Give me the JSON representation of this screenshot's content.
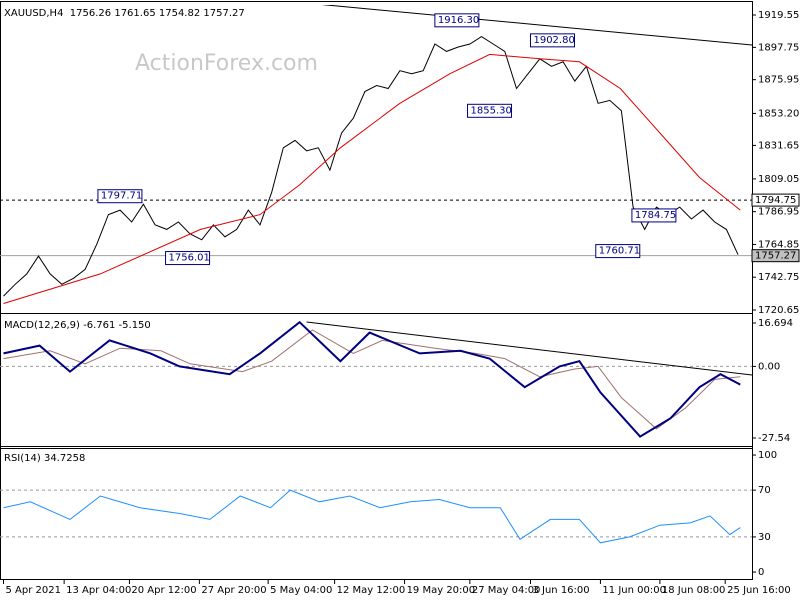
{
  "chart_data": [
    {
      "type": "line",
      "title": "XAUUSD,H4  1756.26 1761.65 1754.82 1757.27",
      "watermark": "ActionForex.com",
      "xlim": [
        -0.3,
        64.2
      ],
      "ylim": [
        1719.3,
        1926.3
      ],
      "yticks": [
        1919.55,
        1897.75,
        1875.95,
        {
          "value": 1853.2,
          "label": "1853.20"
        },
        1831.65,
        1809.05,
        1786.95,
        1764.85,
        1742.75,
        1720.65
      ],
      "hlines": [
        {
          "value": 1794.75,
          "label": "1794.75",
          "style": "dashed",
          "color": "#000000"
        },
        {
          "value": 1757.27,
          "label": "1757.27",
          "style": "solid",
          "color": "#a0a0a0"
        }
      ],
      "annotations": [
        {
          "label": "1916.30",
          "value": 1916.3,
          "x": 37.0
        },
        {
          "label": "1902.80",
          "value": 1902.8,
          "x": 45.2
        },
        {
          "label": "1855.30",
          "value": 1855.3,
          "x": 39.8
        },
        {
          "label": "1797.71",
          "value": 1797.71,
          "x": 8.1
        },
        {
          "label": "1756.01",
          "value": 1756.01,
          "x": 13.9
        },
        {
          "label": "1784.75",
          "value": 1784.75,
          "x": 53.9
        },
        {
          "label": "1760.71",
          "value": 1760.71,
          "x": 50.8
        }
      ],
      "series": [
        {
          "color": "#000000",
          "width": 1,
          "x": [
            0,
            1,
            2,
            3,
            4,
            5,
            6,
            7,
            8,
            9,
            10,
            11,
            12,
            13,
            14,
            15,
            16,
            17,
            18,
            19,
            20,
            21,
            22,
            23,
            24,
            25,
            26,
            27,
            28,
            29,
            30,
            31,
            32,
            33,
            34,
            35,
            36,
            37,
            38,
            39,
            40,
            41,
            42,
            43,
            44,
            45,
            46,
            47,
            48,
            49,
            50,
            51,
            52,
            53,
            54,
            55,
            56,
            57,
            58,
            59,
            60,
            61,
            62,
            63
          ],
          "values": [
            1730,
            1738,
            1745,
            1757,
            1745,
            1738,
            1742,
            1748,
            1765,
            1785,
            1788,
            1780,
            1792,
            1778,
            1775,
            1780,
            1772,
            1768,
            1778,
            1770,
            1775,
            1788,
            1778,
            1800,
            1830,
            1835,
            1828,
            1830,
            1815,
            1840,
            1850,
            1868,
            1872,
            1870,
            1882,
            1880,
            1882,
            1900,
            1895,
            1898,
            1900,
            1905,
            1900,
            1895,
            1870,
            1880,
            1890,
            1885,
            1888,
            1875,
            1885,
            1860,
            1862,
            1855,
            1790,
            1775,
            1790,
            1785,
            1790,
            1782,
            1788,
            1780,
            1775,
            1758
          ]
        },
        {
          "color": "#e00000",
          "width": 1,
          "x": [
            0,
            8.3,
            16.9,
            22,
            25.4,
            28.9,
            34,
            38.3,
            41.7,
            46,
            49.4,
            52.9,
            56.3,
            59.7,
            63.2
          ],
          "values": [
            1725,
            1745,
            1775,
            1785,
            1805,
            1830,
            1860,
            1880,
            1893,
            1890,
            1888,
            1870,
            1840,
            1810,
            1788
          ]
        },
        {
          "color": "#000000",
          "width": 1,
          "x": [
            26,
            64.2
          ],
          "values": [
            1927.6,
            1899.3
          ]
        }
      ]
    },
    {
      "type": "line",
      "title": "MACD(12,26,9) -6.761 -5.150",
      "xlim": [
        -0.3,
        64.2
      ],
      "ylim": [
        -31,
        19
      ],
      "yticks": [
        16.694,
        {
          "value": 0,
          "label": "0.00"
        },
        -27.54
      ],
      "levels": [
        0
      ],
      "series": [
        {
          "color": "#a07070",
          "width": 1,
          "x": [
            0,
            4,
            7,
            10,
            13.5,
            16,
            20.5,
            23,
            26.5,
            30,
            32.5,
            37,
            40.5,
            43,
            46,
            49,
            51,
            53,
            56,
            58.5,
            61,
            63.2
          ],
          "values": [
            3,
            6,
            1,
            7,
            6,
            1,
            -2,
            2,
            14,
            5,
            10,
            7,
            5,
            3,
            -4,
            -1,
            0,
            -12,
            -24,
            -16,
            -5,
            -4
          ]
        },
        {
          "color": "#000080",
          "width": 2,
          "x": [
            0,
            3.1,
            5.7,
            9.1,
            12.6,
            15.1,
            19.4,
            22,
            25.4,
            28.9,
            31.4,
            35.7,
            39.2,
            41.7,
            44.7,
            47.7,
            49.4,
            51.2,
            54.6,
            57.2,
            59.7,
            61.5,
            63.2
          ],
          "values": [
            5,
            8,
            -2,
            10,
            5,
            0,
            -3,
            5,
            17,
            2,
            13,
            5,
            6,
            3,
            -8,
            0,
            2,
            -10,
            -27,
            -20,
            -8,
            -3,
            -7
          ]
        },
        {
          "color": "#000000",
          "width": 1,
          "x": [
            26,
            64.2
          ],
          "values": [
            17.08,
            -3.3
          ]
        }
      ]
    },
    {
      "type": "line",
      "title": "RSI(14) 34.7258",
      "xlim": [
        -0.3,
        64.2
      ],
      "ylim": [
        -5.1,
        104.3
      ],
      "yticks": [
        100,
        70,
        30,
        0
      ],
      "levels": [
        70,
        30
      ],
      "xticks": [
        {
          "value": 0,
          "label": "5 Apr 2021"
        },
        {
          "value": 5.2,
          "label": "13 Apr 04:00"
        },
        {
          "value": 10.8,
          "label": "20 Apr 12:00"
        },
        {
          "value": 16.8,
          "label": "27 Apr 20:00"
        },
        {
          "value": 22.7,
          "label": "5 May 04:00"
        },
        {
          "value": 28.4,
          "label": "12 May 12:00"
        },
        {
          "value": 34.4,
          "label": "19 May 20:00"
        },
        {
          "value": 40,
          "label": "27 May 04:00"
        },
        {
          "value": 45.2,
          "label": "3 Jun 16:00"
        },
        {
          "value": 51.2,
          "label": "11 Jun 00:00"
        },
        {
          "value": 56.3,
          "label": "18 Jun 08:00"
        },
        {
          "value": 61.9,
          "label": "25 Jun 16:00"
        }
      ],
      "series": [
        {
          "color": "#1e90ff",
          "width": 1,
          "x": [
            0,
            2.3,
            5.7,
            8.3,
            11.7,
            15.1,
            17.7,
            20.3,
            22.9,
            24.6,
            27.1,
            29.7,
            32.3,
            34.9,
            37.4,
            40,
            42.6,
            44.3,
            46.9,
            49.4,
            51.2,
            53.7,
            56.3,
            58.9,
            60.6,
            62.3,
            63.2
          ],
          "values": [
            55,
            60,
            45,
            65,
            55,
            50,
            45,
            65,
            55,
            70,
            60,
            65,
            55,
            60,
            62,
            55,
            55,
            28,
            45,
            45,
            25,
            30,
            40,
            42,
            48,
            32,
            38
          ]
        }
      ]
    }
  ]
}
